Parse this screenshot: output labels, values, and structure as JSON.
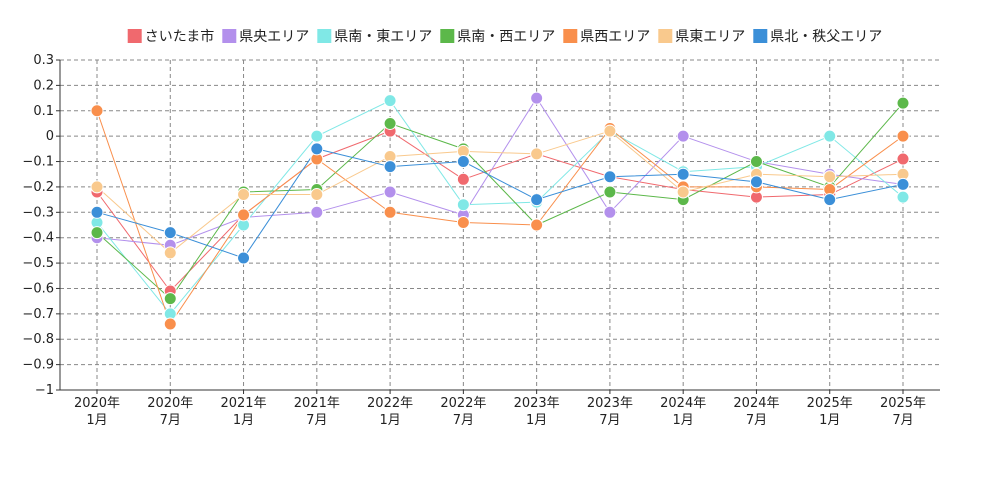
{
  "chart_data": {
    "type": "line",
    "categories": [
      [
        "2020年",
        "1月"
      ],
      [
        "2020年",
        "7月"
      ],
      [
        "2021年",
        "1月"
      ],
      [
        "2021年",
        "7月"
      ],
      [
        "2022年",
        "1月"
      ],
      [
        "2022年",
        "7月"
      ],
      [
        "2023年",
        "1月"
      ],
      [
        "2023年",
        "7月"
      ],
      [
        "2024年",
        "1月"
      ],
      [
        "2024年",
        "7月"
      ],
      [
        "2025年",
        "1月"
      ],
      [
        "2025年",
        "7月"
      ]
    ],
    "ylim": [
      -1,
      0.3
    ],
    "yticks": [
      "0.3",
      "0.2",
      "0.1",
      "0",
      "−0.1",
      "−0.2",
      "−0.3",
      "−0.4",
      "−0.5",
      "−0.6",
      "−0.7",
      "−0.8",
      "−0.9",
      "−1"
    ],
    "ytick_values": [
      0.3,
      0.2,
      0.1,
      0,
      -0.1,
      -0.2,
      -0.3,
      -0.4,
      -0.5,
      -0.6,
      -0.7,
      -0.8,
      -0.9,
      -1
    ],
    "grid": true,
    "legend_position": "top",
    "series": [
      {
        "name": "さいたま市",
        "color": "#f0696e",
        "values": [
          -0.22,
          -0.61,
          -0.31,
          -0.09,
          0.02,
          -0.17,
          -0.07,
          -0.16,
          -0.21,
          -0.24,
          -0.23,
          -0.09
        ]
      },
      {
        "name": "県央エリア",
        "color": "#b390ec",
        "values": [
          -0.4,
          -0.43,
          -0.32,
          -0.3,
          -0.22,
          -0.31,
          0.15,
          -0.3,
          0.0,
          -0.1,
          -0.15,
          -0.19
        ]
      },
      {
        "name": "県南・東エリア",
        "color": "#80e8e6",
        "values": [
          -0.34,
          -0.7,
          -0.35,
          0.0,
          0.14,
          -0.27,
          -0.26,
          0.02,
          -0.14,
          -0.12,
          0.0,
          -0.24
        ]
      },
      {
        "name": "県南・西エリア",
        "color": "#5cb84a",
        "values": [
          -0.38,
          -0.64,
          -0.22,
          -0.21,
          0.05,
          -0.05,
          -0.35,
          -0.22,
          -0.25,
          -0.1,
          -0.2,
          0.13
        ]
      },
      {
        "name": "県西エリア",
        "color": "#f98f4c",
        "values": [
          0.1,
          -0.74,
          -0.31,
          -0.09,
          -0.3,
          -0.34,
          -0.35,
          0.03,
          -0.2,
          -0.2,
          -0.21,
          0.0
        ]
      },
      {
        "name": "県東エリア",
        "color": "#f9c98d",
        "values": [
          -0.2,
          -0.46,
          -0.23,
          -0.23,
          -0.08,
          -0.06,
          -0.07,
          0.02,
          -0.22,
          -0.15,
          -0.16,
          -0.15
        ]
      },
      {
        "name": "県北・秩父エリア",
        "color": "#3b8fd8",
        "values": [
          -0.3,
          -0.38,
          -0.48,
          -0.05,
          -0.12,
          -0.1,
          -0.25,
          -0.16,
          -0.15,
          -0.18,
          -0.25,
          -0.19
        ]
      }
    ]
  }
}
